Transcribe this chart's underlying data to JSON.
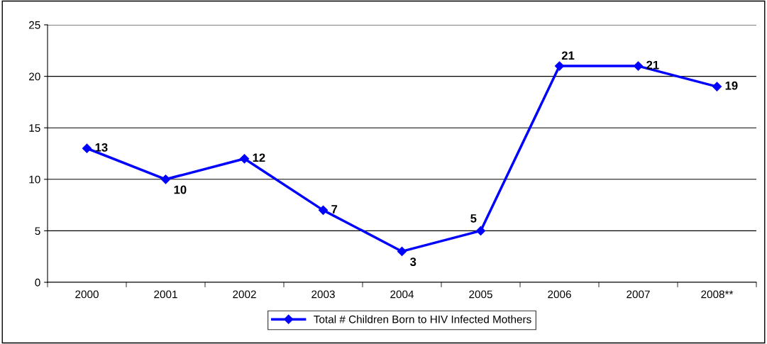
{
  "chart_data": {
    "type": "line",
    "categories": [
      "2000",
      "2001",
      "2002",
      "2003",
      "2004",
      "2005",
      "2006",
      "2007",
      "2008**"
    ],
    "series": [
      {
        "name": "Total # Children Born to HIV Infected Mothers",
        "color": "#0000ff",
        "values": [
          13,
          10,
          12,
          7,
          3,
          5,
          21,
          21,
          19
        ]
      }
    ],
    "ylim": [
      0,
      25
    ],
    "yticks": [
      0,
      5,
      10,
      15,
      20,
      25
    ],
    "grid": "y",
    "legend": "bottom",
    "marker": "diamond",
    "line_style": "solid",
    "data_labels": true
  }
}
